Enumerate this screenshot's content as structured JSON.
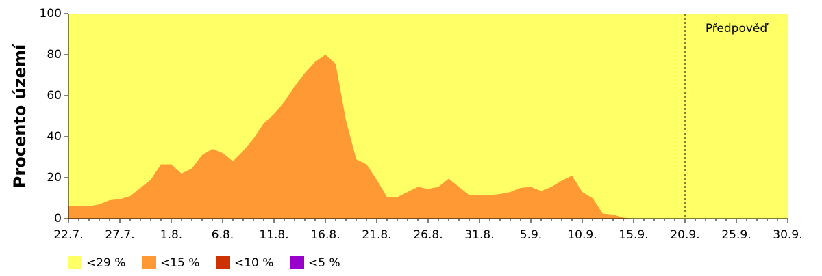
{
  "chart_data": {
    "type": "area",
    "y_label": "Procento území",
    "categories": [
      "22.7.",
      null,
      null,
      null,
      null,
      "27.7.",
      null,
      null,
      null,
      null,
      "1.8.",
      null,
      null,
      null,
      null,
      "6.8.",
      null,
      null,
      null,
      null,
      "11.8.",
      null,
      null,
      null,
      null,
      "16.8.",
      null,
      null,
      null,
      null,
      "21.8.",
      null,
      null,
      null,
      null,
      "26.8.",
      null,
      null,
      null,
      null,
      "31.8.",
      null,
      null,
      null,
      null,
      "5.9.",
      null,
      null,
      null,
      null,
      "10.9.",
      null,
      null,
      null,
      null,
      "15.9.",
      null,
      null,
      null,
      null,
      "20.9.",
      null,
      null,
      null,
      null,
      "25.9.",
      null,
      null,
      null,
      null,
      "30.9."
    ],
    "series": [
      {
        "name": "<29 %",
        "color": "#ffff66",
        "values": [
          100,
          100,
          100,
          100,
          100,
          100,
          100,
          100,
          100,
          100,
          100,
          100,
          100,
          100,
          100,
          100,
          100,
          100,
          100,
          100,
          100,
          100,
          100,
          100,
          100,
          100,
          100,
          100,
          100,
          100,
          100,
          100,
          100,
          100,
          100,
          100,
          100,
          100,
          100,
          100,
          100,
          100,
          100,
          100,
          100,
          100,
          100,
          100,
          100,
          100,
          100,
          100,
          100,
          100,
          100,
          100,
          100,
          100,
          100,
          100,
          100,
          100,
          100,
          100,
          100,
          100,
          100,
          100,
          100,
          100,
          100
        ]
      },
      {
        "name": "<15 %",
        "color": "#ff9933",
        "values": [
          6,
          6,
          6,
          7,
          9,
          9.5,
          11,
          15,
          19,
          26.5,
          26.5,
          22,
          24.5,
          31,
          34,
          32,
          28,
          33,
          39,
          46.5,
          51,
          57,
          64.5,
          71,
          76.5,
          80,
          75.5,
          48,
          29,
          26.5,
          19,
          10.5,
          10.5,
          13,
          15.5,
          14.5,
          15.5,
          19.5,
          15.5,
          11.5,
          11.5,
          11.5,
          12,
          13,
          15,
          15.5,
          13.5,
          15.5,
          18.5,
          21,
          13,
          10,
          2.5,
          2,
          0.5,
          0,
          0,
          0,
          0,
          0,
          0,
          0,
          0,
          0,
          0,
          0,
          0,
          0,
          0,
          0,
          0
        ]
      },
      {
        "name": "<10 %",
        "color": "#cc3300",
        "values": [
          0,
          0,
          0,
          0,
          0,
          0,
          0,
          0,
          0,
          0,
          0,
          0,
          0,
          0,
          0,
          0,
          0,
          0,
          0,
          0,
          0,
          0,
          0,
          0,
          0,
          0,
          0,
          0,
          0,
          0,
          0,
          0,
          0,
          0,
          0,
          0,
          0,
          0,
          0,
          0,
          0,
          0,
          0,
          0,
          0,
          0,
          0,
          0,
          0,
          0,
          0,
          0,
          0,
          0,
          0,
          0,
          0,
          0,
          0,
          0,
          0,
          0,
          0,
          0,
          0,
          0,
          0,
          0,
          0,
          0,
          0
        ]
      },
      {
        "name": "<5 %",
        "color": "#9900cc",
        "values": [
          0,
          0,
          0,
          0,
          0,
          0,
          0,
          0,
          0,
          0,
          0,
          0,
          0,
          0,
          0,
          0,
          0,
          0,
          0,
          0,
          0,
          0,
          0,
          0,
          0,
          0,
          0,
          0,
          0,
          0,
          0,
          0,
          0,
          0,
          0,
          0,
          0,
          0,
          0,
          0,
          0,
          0,
          0,
          0,
          0,
          0,
          0,
          0,
          0,
          0,
          0,
          0,
          0,
          0,
          0,
          0,
          0,
          0,
          0,
          0,
          0,
          0,
          0,
          0,
          0,
          0,
          0,
          0,
          0,
          0,
          0
        ]
      }
    ],
    "ylim": [
      0,
      100
    ],
    "yticks": [
      0,
      20,
      40,
      60,
      80,
      100
    ],
    "annotation": {
      "text": "Předpověď",
      "x": "20.9."
    },
    "legend": "bottom-left"
  }
}
